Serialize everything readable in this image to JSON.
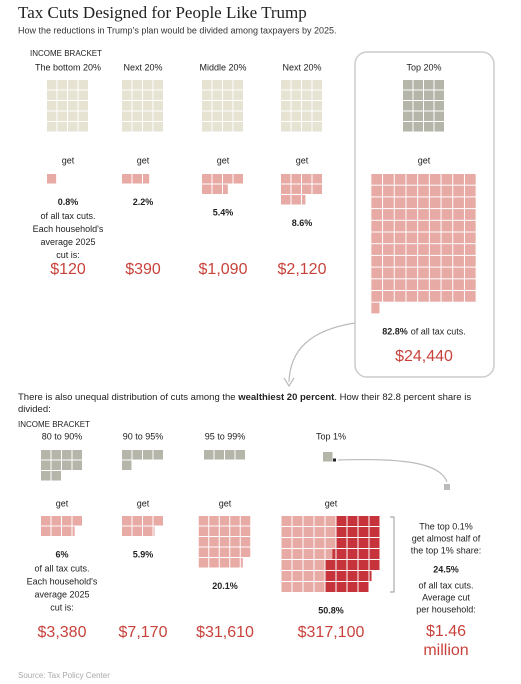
{
  "title": "Tax Cuts Designed for People Like Trump",
  "subtitle": "How the reductions in Trump’s plan would be divided among taxpayers by 2025.",
  "section1": {
    "bracket_label": "INCOME BRACKET",
    "get_label": "get",
    "groups": [
      {
        "name": "The bottom 20%",
        "population_share": 20,
        "share": 0.8,
        "share_label": "0.8%",
        "avg_cut": 120,
        "avg_cut_label": "$120"
      },
      {
        "name": "Next 20%",
        "population_share": 20,
        "share": 2.2,
        "share_label": "2.2%",
        "avg_cut": 390,
        "avg_cut_label": "$390"
      },
      {
        "name": "Middle 20%",
        "population_share": 20,
        "share": 5.4,
        "share_label": "5.4%",
        "avg_cut": 1090,
        "avg_cut_label": "$1,090"
      },
      {
        "name": "Next 20%",
        "population_share": 20,
        "share": 8.6,
        "share_label": "8.6%",
        "avg_cut": 2120,
        "avg_cut_label": "$2,120"
      },
      {
        "name": "Top 20%",
        "population_share": 20,
        "share": 82.8,
        "share_label": "82.8%",
        "avg_cut": 24440,
        "avg_cut_label": "$24,440"
      }
    ],
    "note_lines": [
      "of all tax cuts.",
      "Each household's",
      "average 2025",
      "cut is:"
    ],
    "top_note": "of all tax cuts."
  },
  "section2": {
    "intro": [
      "There is also unequal distribution of cuts among the ",
      "wealthiest 20 percent",
      ". How their 82.8 percent share is divided:"
    ],
    "groups": [
      {
        "name": "80 to 90%",
        "population_share": 10,
        "share": 6,
        "share_label": "6%",
        "avg_cut": 3380,
        "avg_cut_label": "$3,380"
      },
      {
        "name": "90 to 95%",
        "population_share": 5,
        "share": 5.9,
        "share_label": "5.9%",
        "avg_cut": 7170,
        "avg_cut_label": "$7,170"
      },
      {
        "name": "95 to 99%",
        "population_share": 4,
        "share": 20.1,
        "share_label": "20.1%",
        "avg_cut": 31610,
        "avg_cut_label": "$31,610"
      },
      {
        "name": "Top 1%",
        "population_share": 1,
        "share": 50.8,
        "share_label": "50.8%",
        "avg_cut": 317100,
        "avg_cut_label": "$317,100"
      }
    ],
    "note_lines": [
      "of all tax cuts.",
      "Each household's",
      "average 2025",
      "cut is:"
    ],
    "top01": {
      "population_share": 0.1,
      "lines_before": [
        "The top 0.1%",
        "get almost half of",
        "the top 1% share:"
      ],
      "share": 24.5,
      "share_label": "24.5%",
      "lines_after": [
        "of all tax cuts.",
        "Average cut",
        "per household:"
      ],
      "avg_cut": 1460000,
      "avg_cut_label": "$1.46 million"
    }
  },
  "source": "Source: Tax Policy Center"
}
